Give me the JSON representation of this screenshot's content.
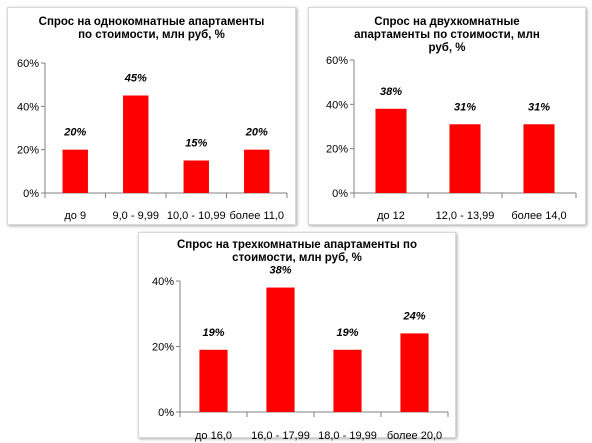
{
  "chart_data": [
    {
      "type": "bar",
      "title": "Спрос на однокомнатные апартаменты\nпо стоимости, млн  руб, %",
      "categories": [
        "до 9",
        "9,0 - 9,99",
        "10,0 - 10,99",
        "более 11,0"
      ],
      "values": [
        20,
        45,
        15,
        20
      ],
      "value_labels": [
        "20%",
        "45%",
        "15%",
        "20%"
      ],
      "ylim": [
        0,
        60
      ],
      "yticks": [
        0,
        20,
        40,
        60
      ],
      "ytick_labels": [
        "0%",
        "20%",
        "40%",
        "60%"
      ],
      "xlabel": "",
      "ylabel": "",
      "bar_color": "#ff0000",
      "grid": false,
      "legend": false
    },
    {
      "type": "bar",
      "title": "Спрос на двухкомнатные\nапартаменты по стоимости, млн\nруб, %",
      "categories": [
        "до 12",
        "12,0 - 13,99",
        "более 14,0"
      ],
      "values": [
        38,
        31,
        31
      ],
      "value_labels": [
        "38%",
        "31%",
        "31%"
      ],
      "ylim": [
        0,
        60
      ],
      "yticks": [
        0,
        20,
        40,
        60
      ],
      "ytick_labels": [
        "0%",
        "20%",
        "40%",
        "60%"
      ],
      "xlabel": "",
      "ylabel": "",
      "bar_color": "#ff0000",
      "grid": false,
      "legend": false
    },
    {
      "type": "bar",
      "title": "Спрос на трехкомнатные апартаменты по\nстоимости, млн  руб, %",
      "categories": [
        "до 16,0",
        "16,0 - 17,99",
        "18,0 - 19,99",
        "более 20,0"
      ],
      "values": [
        19,
        38,
        19,
        24
      ],
      "value_labels": [
        "19%",
        "38%",
        "19%",
        "24%"
      ],
      "ylim": [
        0,
        40
      ],
      "yticks": [
        0,
        20,
        40
      ],
      "ytick_labels": [
        "0%",
        "20%",
        "40%"
      ],
      "xlabel": "",
      "ylabel": "",
      "bar_color": "#ff0000",
      "grid": false,
      "legend": false
    }
  ]
}
